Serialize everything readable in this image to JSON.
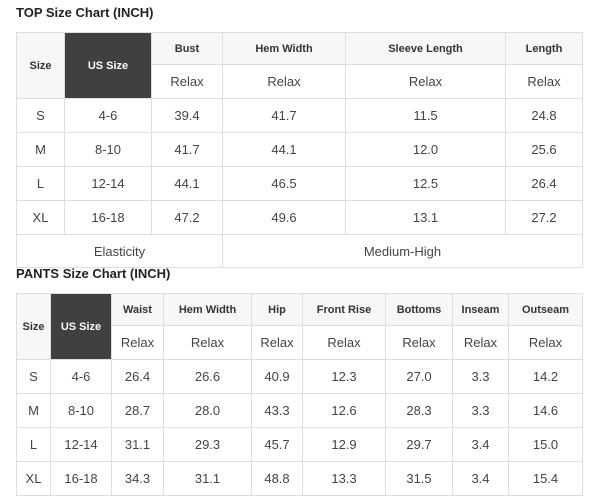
{
  "top": {
    "title": "TOP Size Chart (INCH)",
    "size_label": "Size",
    "us_size_label": "US Size",
    "headers": [
      "Bust",
      "Hem Width",
      "Sleeve Length",
      "Length"
    ],
    "sub_label": "Relax",
    "rows": [
      [
        "S",
        "4-6",
        "39.4",
        "41.7",
        "11.5",
        "24.8"
      ],
      [
        "M",
        "8-10",
        "41.7",
        "44.1",
        "12.0",
        "25.6"
      ],
      [
        "L",
        "12-14",
        "44.1",
        "46.5",
        "12.5",
        "26.4"
      ],
      [
        "XL",
        "16-18",
        "47.2",
        "49.6",
        "13.1",
        "27.2"
      ]
    ],
    "elasticity_label": "Elasticity",
    "elasticity_value": "Medium-High"
  },
  "pants": {
    "title": "PANTS Size Chart (INCH)",
    "size_label": "Size",
    "us_size_label": "US Size",
    "headers": [
      "Waist",
      "Hem Width",
      "Hip",
      "Front Rise",
      "Bottoms",
      "Inseam",
      "Outseam"
    ],
    "sub_label": "Relax",
    "rows": [
      [
        "S",
        "4-6",
        "26.4",
        "26.6",
        "40.9",
        "12.3",
        "27.0",
        "3.3",
        "14.2"
      ],
      [
        "M",
        "8-10",
        "28.7",
        "28.0",
        "43.3",
        "12.6",
        "28.3",
        "3.3",
        "14.6"
      ],
      [
        "L",
        "12-14",
        "31.1",
        "29.3",
        "45.7",
        "12.9",
        "29.7",
        "3.4",
        "15.0"
      ],
      [
        "XL",
        "16-18",
        "34.3",
        "31.1",
        "48.8",
        "13.3",
        "31.5",
        "3.4",
        "15.4"
      ]
    ]
  },
  "colors": {
    "us_size_bg": "#404040",
    "header_bg": "#f7f7f7",
    "border": "#dedede"
  }
}
